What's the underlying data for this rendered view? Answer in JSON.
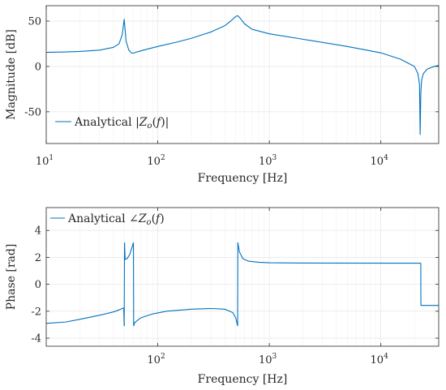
{
  "colors": {
    "series": "#0072BD",
    "axis": "#262626"
  },
  "chart_data": [
    {
      "type": "line",
      "scale": {
        "x": "log"
      },
      "grid": true,
      "legend_position": "bottom-left",
      "xlabel": "Frequency [Hz]",
      "ylabel": "Magnitude [dB]",
      "xlim": [
        10,
        33000
      ],
      "ylim": [
        -85,
        67
      ],
      "x_ticks": [
        {
          "value": 10,
          "base": "10",
          "exp": "1"
        },
        {
          "value": 100,
          "base": "10",
          "exp": "2"
        },
        {
          "value": 1000,
          "base": "10",
          "exp": "3"
        },
        {
          "value": 10000,
          "base": "10",
          "exp": "4"
        }
      ],
      "y_ticks": [
        {
          "value": 50,
          "label": "50"
        },
        {
          "value": 0,
          "label": "0"
        },
        {
          "value": -50,
          "label": "-50"
        }
      ],
      "series": [
        {
          "name": "Analytical |Z_o(f)|",
          "legend_parts": {
            "pre": "Analytical |",
            "var": "Z",
            "sub": "o",
            "arg": "(",
            "argvar": "f",
            "post": ")|"
          },
          "x": [
            10,
            15,
            20,
            30,
            40,
            45,
            48,
            50,
            51,
            52,
            55,
            58,
            60,
            65,
            80,
            100,
            150,
            200,
            300,
            400,
            450,
            500,
            520,
            550,
            600,
            700,
            1000,
            2000,
            5000,
            10000,
            15000,
            20000,
            21500,
            22200,
            22500,
            22800,
            23200,
            24000,
            26000,
            30000,
            33000
          ],
          "y": [
            15.5,
            16,
            16.5,
            18,
            21,
            25,
            35,
            52,
            40,
            28,
            18,
            15,
            14.5,
            16,
            19,
            22,
            27,
            31,
            38,
            45,
            50,
            55,
            56,
            53,
            47,
            41,
            36,
            30,
            22,
            15,
            8,
            0,
            -8,
            -20,
            -75,
            -30,
            -15,
            -8,
            -3,
            0,
            1
          ]
        }
      ]
    },
    {
      "type": "line",
      "scale": {
        "x": "log"
      },
      "grid": true,
      "legend_position": "top-left",
      "xlabel": "Frequency [Hz]",
      "ylabel": "Phase [rad]",
      "xlim": [
        10,
        33000
      ],
      "ylim": [
        -4.6,
        5.7
      ],
      "x_ticks": [
        {
          "value": 100,
          "base": "10",
          "exp": "2"
        },
        {
          "value": 1000,
          "base": "10",
          "exp": "3"
        },
        {
          "value": 10000,
          "base": "10",
          "exp": "4"
        }
      ],
      "y_ticks": [
        {
          "value": 4,
          "label": "4"
        },
        {
          "value": 2,
          "label": "2"
        },
        {
          "value": 0,
          "label": "0"
        },
        {
          "value": -2,
          "label": "-2"
        },
        {
          "value": -4,
          "label": "-4"
        }
      ],
      "series": [
        {
          "name": "Analytical ∠Z_o(f)",
          "legend_parts": {
            "pre": "Analytical ∠",
            "var": "Z",
            "sub": "o",
            "arg": "(",
            "argvar": "f",
            "post": ")"
          },
          "segments": [
            {
              "x": [
                10,
                15,
                20,
                30,
                40,
                45,
                48,
                49.5
              ],
              "y": [
                -2.9,
                -2.8,
                -2.6,
                -2.3,
                -2.05,
                -1.9,
                -1.8,
                -1.75
              ]
            },
            {
              "x": [
                49.5,
                50
              ],
              "y": [
                -1.75,
                -3.1
              ]
            },
            {
              "x": [
                50,
                50.3
              ],
              "y": [
                -3.1,
                3.1
              ]
            },
            {
              "x": [
                50.3,
                51,
                53,
                56,
                59,
                60.5
              ],
              "y": [
                3.1,
                1.85,
                1.9,
                2.2,
                2.8,
                3.1
              ]
            },
            {
              "x": [
                60.5,
                60.8
              ],
              "y": [
                3.1,
                -3.1
              ]
            },
            {
              "x": [
                60.8,
                62,
                70,
                90,
                120,
                200,
                300,
                400,
                470,
                500,
                515,
                520
              ],
              "y": [
                -3.1,
                -2.85,
                -2.5,
                -2.2,
                -2.0,
                -1.85,
                -1.8,
                -1.85,
                -2.1,
                -2.5,
                -2.95,
                -3.1
              ]
            },
            {
              "x": [
                520,
                522
              ],
              "y": [
                -3.1,
                3.1
              ]
            },
            {
              "x": [
                522,
                540,
                580,
                650,
                800,
                1000,
                2000,
                10000,
                22800
              ],
              "y": [
                3.1,
                2.4,
                1.9,
                1.72,
                1.64,
                1.6,
                1.58,
                1.57,
                1.57
              ]
            },
            {
              "x": [
                22800,
                22850
              ],
              "y": [
                1.57,
                -1.57
              ]
            },
            {
              "x": [
                22850,
                33000
              ],
              "y": [
                -1.57,
                -1.57
              ]
            }
          ]
        }
      ]
    }
  ]
}
